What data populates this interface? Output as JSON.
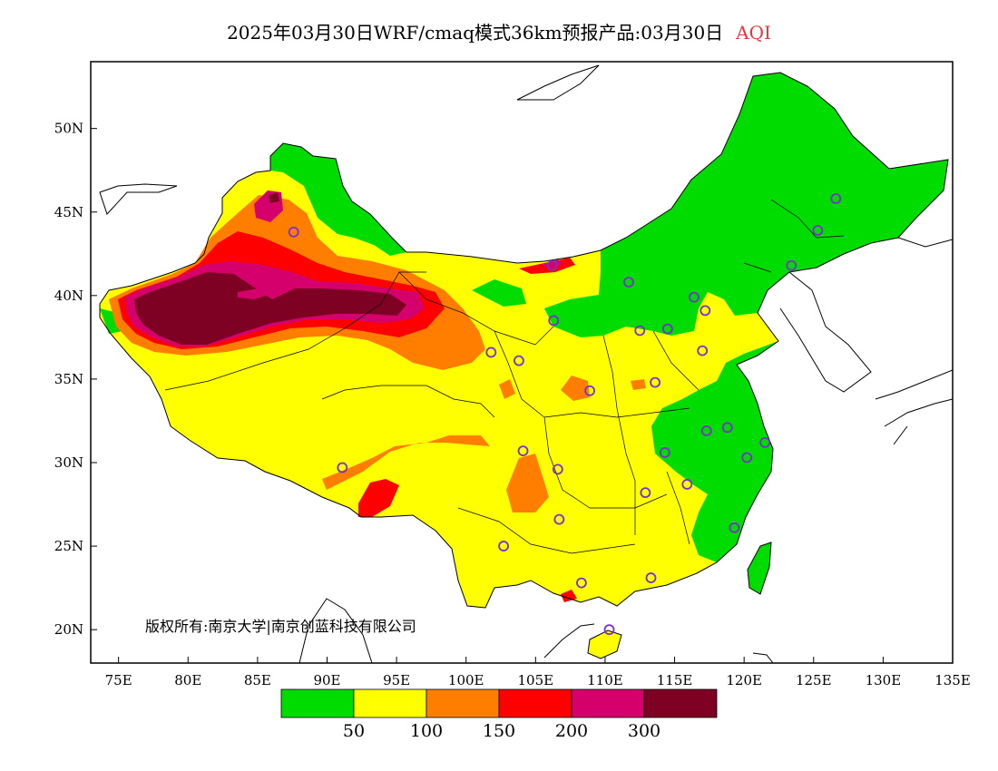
{
  "title": {
    "main": "2025年03月30日WRF/cmaq模式36km预报产品:03月30日",
    "variable": "AQI"
  },
  "copyright": "版权所有:南京大学|南京创蓝科技有限公司",
  "map": {
    "lon_range": [
      73,
      135
    ],
    "lat_range": [
      18,
      54
    ],
    "x_ticks": [
      "75E",
      "80E",
      "85E",
      "90E",
      "95E",
      "100E",
      "105E",
      "110E",
      "115E",
      "120E",
      "125E",
      "130E",
      "135E"
    ],
    "y_ticks": [
      "20N",
      "25N",
      "30N",
      "35N",
      "40N",
      "45N",
      "50N"
    ]
  },
  "legend": {
    "colors": [
      "#00dc00",
      "#ffff00",
      "#ff7e00",
      "#ff0000",
      "#d6006d",
      "#7e0023"
    ],
    "labels": [
      "50",
      "100",
      "150",
      "200",
      "300"
    ],
    "categories": [
      "0-50",
      "50-100",
      "100-150",
      "150-200",
      "200-300",
      ">300"
    ]
  },
  "stations": [
    {
      "lon": 126.6,
      "lat": 45.8
    },
    {
      "lon": 125.3,
      "lat": 43.9
    },
    {
      "lon": 123.4,
      "lat": 41.8
    },
    {
      "lon": 116.4,
      "lat": 39.9
    },
    {
      "lon": 117.2,
      "lat": 39.1
    },
    {
      "lon": 114.5,
      "lat": 38.0
    },
    {
      "lon": 112.5,
      "lat": 37.9
    },
    {
      "lon": 111.7,
      "lat": 40.8
    },
    {
      "lon": 106.3,
      "lat": 38.5
    },
    {
      "lon": 103.8,
      "lat": 36.1
    },
    {
      "lon": 101.8,
      "lat": 36.6
    },
    {
      "lon": 108.9,
      "lat": 34.3
    },
    {
      "lon": 113.6,
      "lat": 34.8
    },
    {
      "lon": 117.0,
      "lat": 36.7
    },
    {
      "lon": 117.3,
      "lat": 31.9
    },
    {
      "lon": 118.8,
      "lat": 32.1
    },
    {
      "lon": 121.5,
      "lat": 31.2
    },
    {
      "lon": 120.2,
      "lat": 30.3
    },
    {
      "lon": 114.3,
      "lat": 30.6
    },
    {
      "lon": 115.9,
      "lat": 28.7
    },
    {
      "lon": 112.9,
      "lat": 28.2
    },
    {
      "lon": 119.3,
      "lat": 26.1
    },
    {
      "lon": 106.6,
      "lat": 29.6
    },
    {
      "lon": 104.1,
      "lat": 30.7
    },
    {
      "lon": 106.7,
      "lat": 26.6
    },
    {
      "lon": 102.7,
      "lat": 25.0
    },
    {
      "lon": 108.3,
      "lat": 22.8
    },
    {
      "lon": 113.3,
      "lat": 23.1
    },
    {
      "lon": 110.3,
      "lat": 20.0
    },
    {
      "lon": 91.1,
      "lat": 29.7
    },
    {
      "lon": 87.6,
      "lat": 43.8
    },
    {
      "lon": 106.2,
      "lat": 41.8
    }
  ]
}
